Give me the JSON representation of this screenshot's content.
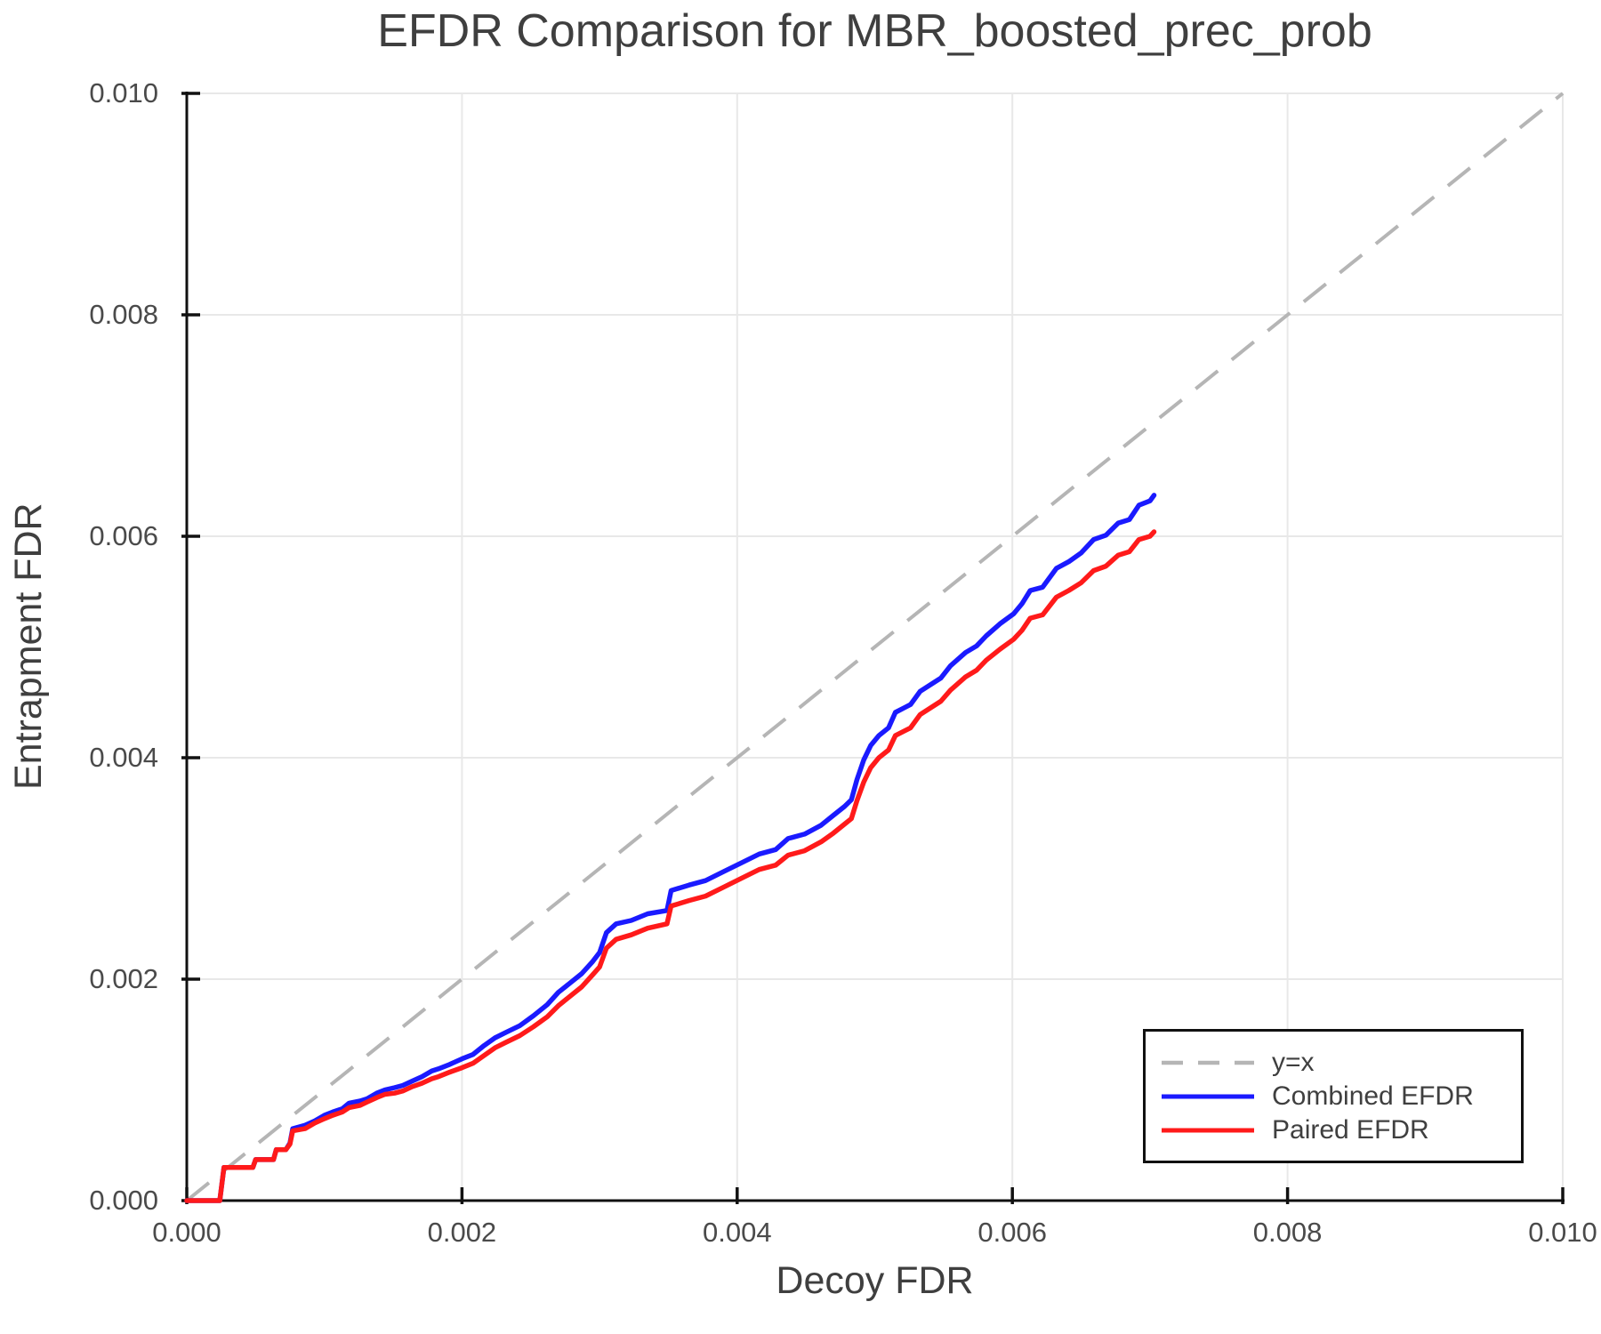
{
  "title": "EFDR Comparison for MBR_boosted_prec_prob",
  "legend": {
    "position": "lower right",
    "items": [
      "y=x",
      "Combined EFDR",
      "Paired EFDR"
    ]
  },
  "colors": {
    "grid": "#e8e8e8",
    "spine": "#111111",
    "tick_label": "#4a4a4a",
    "text": "#3f3f3f",
    "background": "#ffffff"
  },
  "chart_data": {
    "type": "line",
    "title": "EFDR Comparison for MBR_boosted_prec_prob",
    "xlabel": "Decoy FDR",
    "ylabel": "Entrapment FDR",
    "xlim": [
      0.0,
      0.01
    ],
    "ylim": [
      0.0,
      0.01
    ],
    "grid": true,
    "legend_position": "lower right",
    "x_ticks": [
      0.0,
      0.002,
      0.004,
      0.006,
      0.008,
      0.01
    ],
    "x_tick_labels": [
      "0.000",
      "0.002",
      "0.004",
      "0.006",
      "0.008",
      "0.010"
    ],
    "y_ticks": [
      0.0,
      0.002,
      0.004,
      0.006,
      0.008,
      0.01
    ],
    "y_tick_labels": [
      "0.000",
      "0.002",
      "0.004",
      "0.006",
      "0.008",
      "0.010"
    ],
    "reference_line": {
      "label": "y=x",
      "style": "dashed",
      "color": "#b5b5b5",
      "from": [
        0.0,
        0.0
      ],
      "to": [
        0.01,
        0.01
      ]
    },
    "series": [
      {
        "name": "Combined EFDR",
        "color": "#1a1aff",
        "x": [
          0,
          0.00024,
          0.00027,
          0.00048,
          0.0005,
          0.00063,
          0.00065,
          0.00072,
          0.00075,
          0.00077,
          0.00086,
          0.00093,
          0.001,
          0.00106,
          0.00113,
          0.00118,
          0.00126,
          0.00131,
          0.00138,
          0.00144,
          0.00151,
          0.00157,
          0.00164,
          0.00171,
          0.00178,
          0.00183,
          0.00191,
          0.002,
          0.00208,
          0.00216,
          0.00224,
          0.00232,
          0.00242,
          0.00252,
          0.00262,
          0.0027,
          0.00278,
          0.00287,
          0.00295,
          0.003,
          0.00305,
          0.00312,
          0.00323,
          0.00335,
          0.00349,
          0.00352,
          0.00365,
          0.00377,
          0.0039,
          0.00403,
          0.00416,
          0.00428,
          0.00437,
          0.00449,
          0.00461,
          0.0047,
          0.00478,
          0.00483,
          0.00487,
          0.00492,
          0.00497,
          0.00503,
          0.0051,
          0.00515,
          0.00526,
          0.00533,
          0.00548,
          0.00555,
          0.00566,
          0.00574,
          0.00581,
          0.00591,
          0.00601,
          0.00607,
          0.00613,
          0.00622,
          0.00632,
          0.00641,
          0.0065,
          0.00659,
          0.00668,
          0.00677,
          0.00685,
          0.00692,
          0.007,
          0.00703
        ],
        "y": [
          0,
          0,
          0.0003,
          0.0003,
          0.00037,
          0.00037,
          0.00046,
          0.00046,
          0.00052,
          0.00065,
          0.00068,
          0.00072,
          0.00077,
          0.0008,
          0.00083,
          0.00088,
          0.0009,
          0.00092,
          0.00097,
          0.001,
          0.00102,
          0.00104,
          0.00108,
          0.00112,
          0.00117,
          0.00119,
          0.00123,
          0.00128,
          0.00132,
          0.0014,
          0.00147,
          0.00152,
          0.00158,
          0.00167,
          0.00177,
          0.00188,
          0.00196,
          0.00205,
          0.00216,
          0.00224,
          0.00242,
          0.0025,
          0.00253,
          0.00259,
          0.00262,
          0.0028,
          0.00285,
          0.00289,
          0.00297,
          0.00305,
          0.00313,
          0.00317,
          0.00327,
          0.00331,
          0.00339,
          0.00348,
          0.00356,
          0.00362,
          0.0038,
          0.00398,
          0.00411,
          0.0042,
          0.00427,
          0.00441,
          0.00448,
          0.0046,
          0.00472,
          0.00483,
          0.00495,
          0.00501,
          0.0051,
          0.00521,
          0.0053,
          0.00539,
          0.00551,
          0.00554,
          0.00571,
          0.00577,
          0.00585,
          0.00597,
          0.00601,
          0.00612,
          0.00615,
          0.00628,
          0.00632,
          0.00637
        ]
      },
      {
        "name": "Paired EFDR",
        "color": "#ff1a1a",
        "x": [
          0,
          0.00024,
          0.00027,
          0.00048,
          0.0005,
          0.00063,
          0.00065,
          0.00072,
          0.00075,
          0.00077,
          0.00086,
          0.00093,
          0.001,
          0.00106,
          0.00113,
          0.00118,
          0.00126,
          0.00131,
          0.00138,
          0.00144,
          0.00151,
          0.00157,
          0.00164,
          0.00171,
          0.00178,
          0.00183,
          0.00191,
          0.002,
          0.00208,
          0.00216,
          0.00224,
          0.00232,
          0.00242,
          0.00252,
          0.00262,
          0.0027,
          0.00278,
          0.00287,
          0.00295,
          0.003,
          0.00305,
          0.00312,
          0.00323,
          0.00335,
          0.00349,
          0.00352,
          0.00365,
          0.00377,
          0.0039,
          0.00403,
          0.00416,
          0.00428,
          0.00437,
          0.00449,
          0.00461,
          0.0047,
          0.00478,
          0.00483,
          0.00487,
          0.00492,
          0.00497,
          0.00503,
          0.0051,
          0.00515,
          0.00526,
          0.00533,
          0.00548,
          0.00555,
          0.00566,
          0.00574,
          0.00581,
          0.00591,
          0.00601,
          0.00607,
          0.00613,
          0.00622,
          0.00632,
          0.00641,
          0.0065,
          0.00659,
          0.00668,
          0.00677,
          0.00685,
          0.00692,
          0.007,
          0.00703
        ],
        "y": [
          0,
          0,
          0.0003,
          0.0003,
          0.00037,
          0.00037,
          0.00046,
          0.00046,
          0.00051,
          0.00063,
          0.00065,
          0.0007,
          0.00074,
          0.00077,
          0.0008,
          0.00084,
          0.00086,
          0.00089,
          0.00093,
          0.00096,
          0.00097,
          0.00099,
          0.00103,
          0.00106,
          0.0011,
          0.00112,
          0.00116,
          0.0012,
          0.00124,
          0.00131,
          0.00138,
          0.00143,
          0.00149,
          0.00157,
          0.00166,
          0.00176,
          0.00184,
          0.00193,
          0.00204,
          0.00211,
          0.00228,
          0.00236,
          0.0024,
          0.00246,
          0.0025,
          0.00266,
          0.00271,
          0.00275,
          0.00283,
          0.00291,
          0.00299,
          0.00303,
          0.00312,
          0.00316,
          0.00324,
          0.00332,
          0.0034,
          0.00345,
          0.00361,
          0.00378,
          0.00391,
          0.004,
          0.00407,
          0.0042,
          0.00427,
          0.00439,
          0.00451,
          0.00461,
          0.00473,
          0.00479,
          0.00488,
          0.00498,
          0.00507,
          0.00515,
          0.00526,
          0.00529,
          0.00545,
          0.00551,
          0.00558,
          0.00569,
          0.00573,
          0.00583,
          0.00586,
          0.00597,
          0.006,
          0.00604
        ]
      }
    ]
  }
}
